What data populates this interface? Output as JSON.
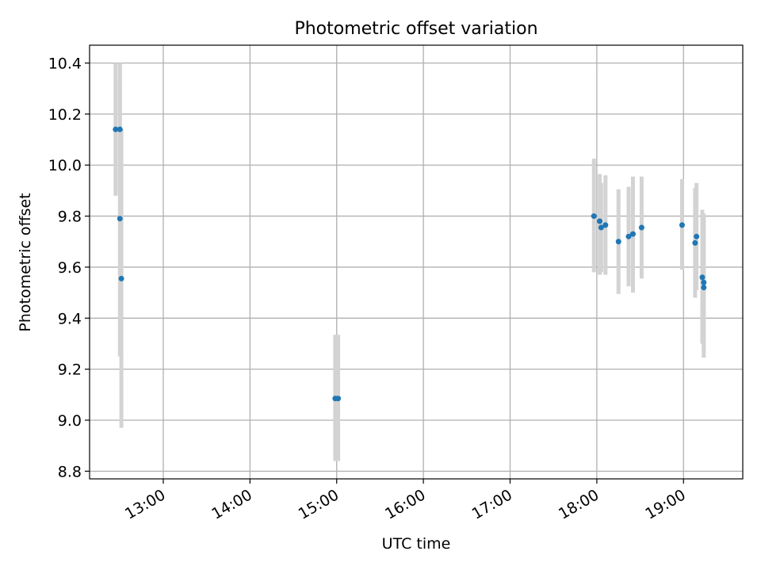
{
  "chart_data": {
    "type": "scatter",
    "title": "Photometric offset variation",
    "xlabel": "UTC time",
    "ylabel": "Photometric offset",
    "x_ticks": [
      "13:00",
      "14:00",
      "15:00",
      "16:00",
      "17:00",
      "18:00",
      "19:00"
    ],
    "y_ticks": [
      "8.8",
      "9.0",
      "9.2",
      "9.4",
      "9.6",
      "9.8",
      "10.0",
      "10.2",
      "10.4"
    ],
    "xlim": [
      "12:09",
      "19:41"
    ],
    "ylim": [
      8.77,
      10.47
    ],
    "grid": true,
    "colors": {
      "point": "#1f77b4",
      "errorbar": "#d3d3d3",
      "grid": "#b0b0b0"
    },
    "series": [
      {
        "points": [
          {
            "x": "12:27",
            "y": 10.14,
            "ylow": 9.88,
            "yhigh": 10.4
          },
          {
            "x": "12:30",
            "y": 10.14,
            "ylow": 9.88,
            "yhigh": 10.4
          },
          {
            "x": "12:30",
            "y": 9.79,
            "ylow": 9.25,
            "yhigh": 10.33
          },
          {
            "x": "12:31",
            "y": 9.555,
            "ylow": 8.97,
            "yhigh": 10.14
          },
          {
            "x": "14:59",
            "y": 9.085,
            "ylow": 8.84,
            "yhigh": 9.335
          },
          {
            "x": "15:01",
            "y": 9.085,
            "ylow": 8.84,
            "yhigh": 9.335
          },
          {
            "x": "17:58",
            "y": 9.8,
            "ylow": 9.58,
            "yhigh": 10.025
          },
          {
            "x": "18:02",
            "y": 9.78,
            "ylow": 9.57,
            "yhigh": 9.965
          },
          {
            "x": "18:03",
            "y": 9.755,
            "ylow": 9.58,
            "yhigh": 9.93
          },
          {
            "x": "18:06",
            "y": 9.765,
            "ylow": 9.57,
            "yhigh": 9.96
          },
          {
            "x": "18:15",
            "y": 9.7,
            "ylow": 9.495,
            "yhigh": 9.905
          },
          {
            "x": "18:22",
            "y": 9.72,
            "ylow": 9.525,
            "yhigh": 9.915
          },
          {
            "x": "18:25",
            "y": 9.73,
            "ylow": 9.5,
            "yhigh": 9.955
          },
          {
            "x": "18:31",
            "y": 9.755,
            "ylow": 9.555,
            "yhigh": 9.955
          },
          {
            "x": "18:59",
            "y": 9.765,
            "ylow": 9.59,
            "yhigh": 9.945
          },
          {
            "x": "19:08",
            "y": 9.695,
            "ylow": 9.48,
            "yhigh": 9.91
          },
          {
            "x": "19:09",
            "y": 9.72,
            "ylow": 9.51,
            "yhigh": 9.93
          },
          {
            "x": "19:13",
            "y": 9.56,
            "ylow": 9.3,
            "yhigh": 9.825
          },
          {
            "x": "19:14",
            "y": 9.54,
            "ylow": 9.27,
            "yhigh": 9.81
          },
          {
            "x": "19:14",
            "y": 9.52,
            "ylow": 9.245,
            "yhigh": 9.8
          }
        ]
      }
    ]
  }
}
